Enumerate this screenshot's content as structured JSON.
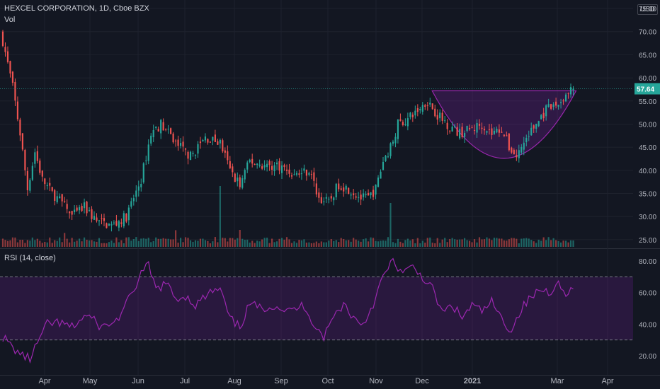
{
  "header": {
    "symbol_line": "HEXCEL CORPORATION, 1D, Cboe BZX",
    "volume_label": "Vol",
    "currency": "USD",
    "last_price": "57.64"
  },
  "rsi": {
    "label": "RSI (14, close)"
  },
  "colors": {
    "background": "#131722",
    "up": "#26a69a",
    "down": "#ef5350",
    "rsi_line": "#9c27b0",
    "pattern_fill": "#7b1fa2",
    "grid": "#1e222d"
  },
  "chart_data": [
    {
      "type": "candlestick",
      "title": "HEXCEL CORPORATION, 1D, Cboe BZX",
      "annotation": "cup (rounded bottom) pattern from early Dec to early Mar, rim near 57.6",
      "y_ticks": [
        25,
        30,
        35,
        40,
        45,
        50,
        55,
        60,
        65,
        70,
        75
      ],
      "y_tick_labels": [
        "25.00",
        "30.00",
        "35.00",
        "40.00",
        "45.00",
        "50.00",
        "55.00",
        "60.00",
        "65.00",
        "70.00",
        "75.00"
      ],
      "ylim": [
        22,
        75
      ],
      "x_ticks": [
        "Apr",
        "May",
        "Jun",
        "Jul",
        "Aug",
        "Sep",
        "Oct",
        "Nov",
        "Dec",
        "2021",
        "Mar",
        "Apr"
      ],
      "close_path": [
        {
          "t": 0,
          "v": 68
        },
        {
          "t": 4,
          "v": 58
        },
        {
          "t": 7,
          "v": 48
        },
        {
          "t": 10,
          "v": 36
        },
        {
          "t": 13,
          "v": 44
        },
        {
          "t": 16,
          "v": 38
        },
        {
          "t": 20,
          "v": 35
        },
        {
          "t": 24,
          "v": 33
        },
        {
          "t": 28,
          "v": 30
        },
        {
          "t": 33,
          "v": 32
        },
        {
          "t": 38,
          "v": 29
        },
        {
          "t": 44,
          "v": 28
        },
        {
          "t": 50,
          "v": 30
        },
        {
          "t": 56,
          "v": 38
        },
        {
          "t": 60,
          "v": 48
        },
        {
          "t": 64,
          "v": 50
        },
        {
          "t": 70,
          "v": 46
        },
        {
          "t": 76,
          "v": 43
        },
        {
          "t": 82,
          "v": 47
        },
        {
          "t": 88,
          "v": 46
        },
        {
          "t": 92,
          "v": 40
        },
        {
          "t": 96,
          "v": 37
        },
        {
          "t": 100,
          "v": 42
        },
        {
          "t": 106,
          "v": 41
        },
        {
          "t": 112,
          "v": 41
        },
        {
          "t": 118,
          "v": 39
        },
        {
          "t": 124,
          "v": 40
        },
        {
          "t": 128,
          "v": 34
        },
        {
          "t": 132,
          "v": 33
        },
        {
          "t": 136,
          "v": 37
        },
        {
          "t": 140,
          "v": 36
        },
        {
          "t": 145,
          "v": 34
        },
        {
          "t": 148,
          "v": 34
        },
        {
          "t": 151,
          "v": 36
        },
        {
          "t": 154,
          "v": 42
        },
        {
          "t": 157,
          "v": 45
        },
        {
          "t": 160,
          "v": 50
        },
        {
          "t": 164,
          "v": 51
        },
        {
          "t": 168,
          "v": 53
        },
        {
          "t": 172,
          "v": 55
        },
        {
          "t": 176,
          "v": 52
        },
        {
          "t": 180,
          "v": 50
        },
        {
          "t": 185,
          "v": 48
        },
        {
          "t": 190,
          "v": 49
        },
        {
          "t": 194,
          "v": 50
        },
        {
          "t": 198,
          "v": 48
        },
        {
          "t": 202,
          "v": 49
        },
        {
          "t": 205,
          "v": 45
        },
        {
          "t": 208,
          "v": 43
        },
        {
          "t": 212,
          "v": 47
        },
        {
          "t": 216,
          "v": 50
        },
        {
          "t": 220,
          "v": 53
        },
        {
          "t": 224,
          "v": 54
        },
        {
          "t": 228,
          "v": 56
        },
        {
          "t": 231,
          "v": 57.64
        }
      ],
      "last_value": 57.64
    },
    {
      "type": "line",
      "title": "RSI (14, close)",
      "y_ticks": [
        20,
        40,
        60,
        80
      ],
      "y_tick_labels": [
        "20.00",
        "40.00",
        "60.00",
        "80.00"
      ],
      "ylim": [
        12,
        84
      ],
      "band": [
        30,
        70
      ],
      "values": [
        {
          "t": 0,
          "v": 32
        },
        {
          "t": 4,
          "v": 25
        },
        {
          "t": 8,
          "v": 20
        },
        {
          "t": 11,
          "v": 18
        },
        {
          "t": 14,
          "v": 28
        },
        {
          "t": 18,
          "v": 40
        },
        {
          "t": 22,
          "v": 41
        },
        {
          "t": 28,
          "v": 38
        },
        {
          "t": 34,
          "v": 46
        },
        {
          "t": 40,
          "v": 38
        },
        {
          "t": 46,
          "v": 42
        },
        {
          "t": 52,
          "v": 58
        },
        {
          "t": 56,
          "v": 72
        },
        {
          "t": 59,
          "v": 77
        },
        {
          "t": 62,
          "v": 62
        },
        {
          "t": 66,
          "v": 66
        },
        {
          "t": 70,
          "v": 56
        },
        {
          "t": 74,
          "v": 58
        },
        {
          "t": 78,
          "v": 52
        },
        {
          "t": 84,
          "v": 60
        },
        {
          "t": 88,
          "v": 62
        },
        {
          "t": 92,
          "v": 43
        },
        {
          "t": 96,
          "v": 38
        },
        {
          "t": 100,
          "v": 53
        },
        {
          "t": 104,
          "v": 50
        },
        {
          "t": 110,
          "v": 52
        },
        {
          "t": 116,
          "v": 48
        },
        {
          "t": 122,
          "v": 52
        },
        {
          "t": 126,
          "v": 40
        },
        {
          "t": 130,
          "v": 32
        },
        {
          "t": 134,
          "v": 45
        },
        {
          "t": 138,
          "v": 53
        },
        {
          "t": 142,
          "v": 44
        },
        {
          "t": 146,
          "v": 40
        },
        {
          "t": 150,
          "v": 53
        },
        {
          "t": 154,
          "v": 70
        },
        {
          "t": 158,
          "v": 80
        },
        {
          "t": 162,
          "v": 72
        },
        {
          "t": 166,
          "v": 76
        },
        {
          "t": 170,
          "v": 70
        },
        {
          "t": 174,
          "v": 62
        },
        {
          "t": 178,
          "v": 47
        },
        {
          "t": 182,
          "v": 52
        },
        {
          "t": 186,
          "v": 44
        },
        {
          "t": 190,
          "v": 52
        },
        {
          "t": 194,
          "v": 48
        },
        {
          "t": 198,
          "v": 54
        },
        {
          "t": 202,
          "v": 43
        },
        {
          "t": 206,
          "v": 36
        },
        {
          "t": 210,
          "v": 50
        },
        {
          "t": 214,
          "v": 57
        },
        {
          "t": 218,
          "v": 62
        },
        {
          "t": 222,
          "v": 60
        },
        {
          "t": 224,
          "v": 68
        },
        {
          "t": 227,
          "v": 60
        },
        {
          "t": 231,
          "v": 62
        }
      ]
    }
  ]
}
